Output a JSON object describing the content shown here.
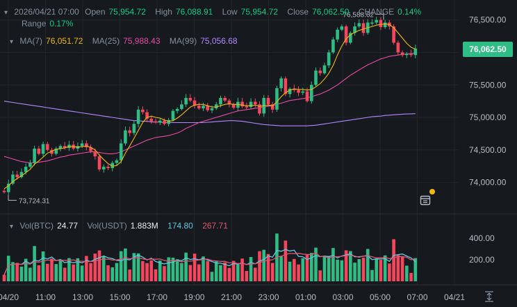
{
  "header": {
    "datetime": "2026/04/21 07:00",
    "open_label": "Open",
    "open": "75,954.72",
    "high_label": "High",
    "high": "76,088.91",
    "low_label": "Low",
    "low": "75,954.72",
    "close_label": "Close",
    "close": "76,062.50",
    "change_label": "CHANGE",
    "change": "0.14%",
    "range_label": "Range",
    "range": "0.17%"
  },
  "ma": {
    "ma7_label": "MA(7)",
    "ma7": "76,051.72",
    "ma25_label": "MA(25)",
    "ma25": "75,988.43",
    "ma99_label": "MA(99)",
    "ma99": "75,056.68"
  },
  "volume": {
    "vol_btc_label": "Vol(BTC)",
    "vol_btc": "24.77",
    "vol_usdt_label": "Vol(USDT)",
    "vol_usdt": "1.883M",
    "ma_a": "174.80",
    "ma_b": "267.71"
  },
  "price_tag": "76,062.50",
  "annotations": {
    "high_marker": "76,588.62",
    "low_marker": "73,724.31"
  },
  "colors": {
    "up": "#2ebd85",
    "down": "#f6465d",
    "ma7": "#f0b90b",
    "ma25": "#eb4aa6",
    "ma99": "#b388ff",
    "vol_ma_a": "#5ec9e0",
    "vol_ma_b": "#e0546f",
    "bg": "#161a1e"
  },
  "icons": [
    "chevron-down-icon",
    "calendar-icon",
    "fullscreen-icon"
  ],
  "chart_data": {
    "type": "candlestick",
    "interval": "15m",
    "x_ticks": [
      "04/20",
      "11:00",
      "13:00",
      "15:00",
      "17:00",
      "19:00",
      "21:00",
      "23:00",
      "01:00",
      "03:00",
      "05:00",
      "07:00",
      "04/21"
    ],
    "y_ticks": [
      "76,500.00",
      "76,000.00",
      "75,500.00",
      "75,000.00",
      "74,500.00",
      "74,000.00"
    ],
    "ylim": [
      73600,
      76700
    ],
    "volume_ticks": [
      "400.00",
      "200.00"
    ],
    "volume_ylim": [
      0,
      560
    ],
    "series": [
      {
        "name": "Price",
        "values": [
          73850,
          73980,
          74120,
          74080,
          74160,
          74240,
          74300,
          74520,
          74440,
          74590,
          74500,
          74440,
          74520,
          74560,
          74530,
          74580,
          74520,
          74560,
          74600,
          74540,
          74480,
          74400,
          74200,
          74240,
          74220,
          74300,
          74340,
          74600,
          74800,
          74760,
          74900,
          75120,
          75080,
          74980,
          74940,
          74920,
          74950,
          74900,
          74960,
          75100,
          75130,
          75200,
          75300,
          75260,
          75180,
          75140,
          75180,
          75110,
          75140,
          75200,
          75300,
          75260,
          75200,
          75150,
          75240,
          75170,
          75160,
          75240,
          75200,
          75060,
          75300,
          75200,
          75120,
          75450,
          75600,
          75360,
          75440,
          75420,
          75380,
          75400,
          75250,
          75500,
          75720,
          75680,
          75800,
          76000,
          76200,
          76350,
          76400,
          76150,
          76300,
          76400,
          76450,
          76300,
          76460,
          76460,
          76500,
          76390,
          76460,
          76400,
          76150,
          76000,
          75960,
          75980,
          75960,
          76060
        ]
      },
      {
        "name": "MA(7)",
        "values": [
          73900,
          73950,
          74010,
          74060,
          74100,
          74150,
          74200,
          74280,
          74330,
          74390,
          74450,
          74480,
          74510,
          74520,
          74530,
          74550,
          74550,
          74540,
          74550,
          74560,
          74540,
          74500,
          74420,
          74350,
          74290,
          74250,
          74260,
          74320,
          74450,
          74560,
          74680,
          74800,
          74920,
          75000,
          75020,
          75000,
          74990,
          74960,
          74940,
          74950,
          74990,
          75040,
          75100,
          75160,
          75190,
          75200,
          75200,
          75180,
          75160,
          75160,
          75180,
          75200,
          75210,
          75200,
          75200,
          75190,
          75180,
          75180,
          75190,
          75170,
          75180,
          75190,
          75180,
          75240,
          75320,
          75380,
          75420,
          75440,
          75430,
          75430,
          75420,
          75430,
          75470,
          75520,
          75590,
          75680,
          75800,
          75960,
          76100,
          76210,
          76270,
          76310,
          76340,
          76360,
          76380,
          76400,
          76420,
          76430,
          76440,
          76430,
          76380,
          76300,
          76220,
          76140,
          76080,
          76052
        ]
      },
      {
        "name": "MA(25)",
        "values": [
          74400,
          74380,
          74360,
          74340,
          74320,
          74310,
          74300,
          74300,
          74310,
          74320,
          74330,
          74350,
          74370,
          74390,
          74400,
          74420,
          74430,
          74440,
          74450,
          74460,
          74470,
          74470,
          74460,
          74450,
          74440,
          74440,
          74450,
          74470,
          74500,
          74530,
          74560,
          74590,
          74620,
          74650,
          74670,
          74690,
          74700,
          74710,
          74720,
          74740,
          74760,
          74790,
          74830,
          74860,
          74890,
          74920,
          74940,
          74960,
          74980,
          75000,
          75020,
          75040,
          75060,
          75080,
          75100,
          75110,
          75120,
          75130,
          75140,
          75150,
          75160,
          75170,
          75180,
          75200,
          75220,
          75240,
          75260,
          75270,
          75280,
          75290,
          75300,
          75320,
          75340,
          75360,
          75390,
          75420,
          75460,
          75500,
          75550,
          75600,
          75650,
          75690,
          75730,
          75770,
          75810,
          75840,
          75870,
          75900,
          75920,
          75940,
          75950,
          75960,
          75970,
          75975,
          75982,
          75988
        ]
      },
      {
        "name": "MA(99)",
        "values": [
          75250,
          75240,
          75230,
          75220,
          75210,
          75200,
          75190,
          75180,
          75170,
          75160,
          75150,
          75140,
          75130,
          75120,
          75110,
          75100,
          75090,
          75080,
          75070,
          75060,
          75050,
          75040,
          75030,
          75020,
          75010,
          75000,
          74990,
          74980,
          74970,
          74960,
          74950,
          74950,
          74940,
          74940,
          74930,
          74930,
          74925,
          74920,
          74920,
          74920,
          74920,
          74920,
          74920,
          74920,
          74920,
          74920,
          74920,
          74925,
          74930,
          74935,
          74940,
          74945,
          74950,
          74950,
          74945,
          74940,
          74930,
          74920,
          74910,
          74900,
          74890,
          74885,
          74880,
          74875,
          74870,
          74870,
          74870,
          74870,
          74870,
          74870,
          74870,
          74875,
          74880,
          74890,
          74900,
          74910,
          74920,
          74930,
          74940,
          74950,
          74960,
          74970,
          74980,
          74990,
          75000,
          75010,
          75015,
          75020,
          75030,
          75035,
          75040,
          75045,
          75050,
          75053,
          75055,
          75057
        ]
      }
    ]
  }
}
